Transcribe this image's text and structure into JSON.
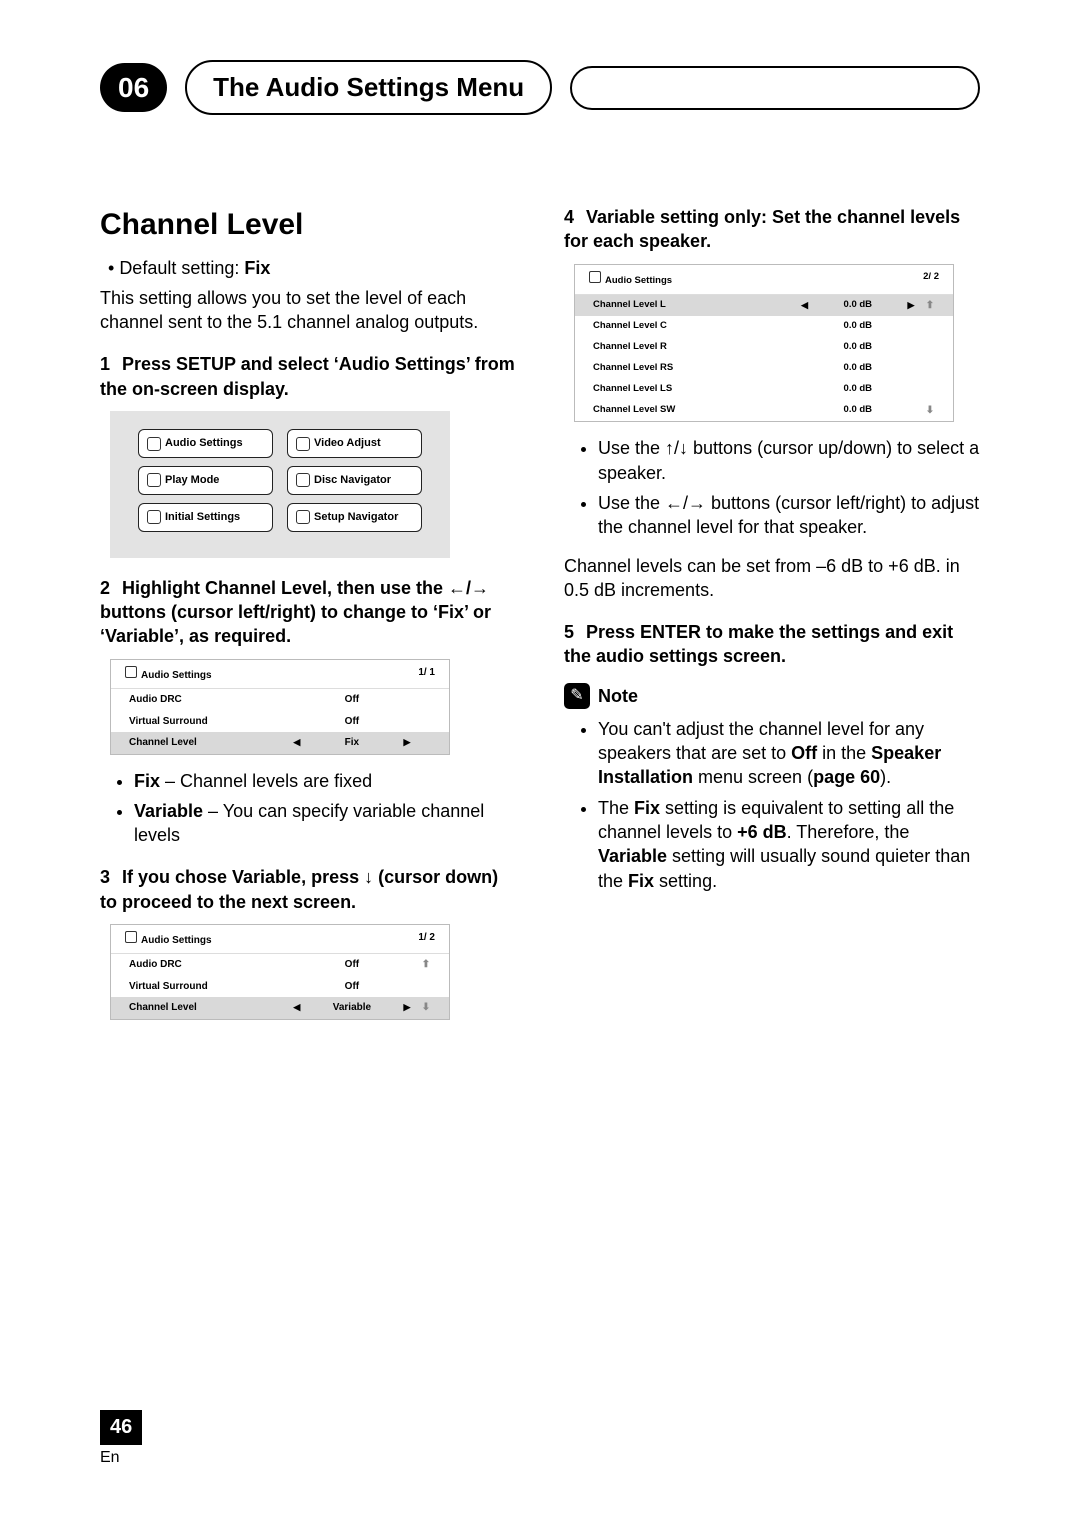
{
  "header": {
    "chapter": "06",
    "title": "The Audio Settings Menu"
  },
  "h1": "Channel Level",
  "default_label": "Default setting:",
  "default_value": "Fix",
  "intro": "This setting allows you to set the level of each channel sent to the 5.1 channel analog outputs.",
  "steps": {
    "s1": "Press SETUP and select ‘Audio Settings’ from the on-screen display.",
    "s2": "Highlight Channel Level, then use the ←/→ buttons (cursor left/right) to change to ‘Fix’ or ‘Variable’, as required.",
    "s3": "If you chose Variable, press ↓ (cursor down) to proceed to the next screen.",
    "s4": "Variable setting only: Set the channel levels for each speaker.",
    "s5": "Press ENTER to make the settings and exit the audio settings screen."
  },
  "menu1": {
    "items": [
      "Audio Settings",
      "Video Adjust",
      "Play Mode",
      "Disc Navigator",
      "Initial Settings",
      "Setup Navigator"
    ]
  },
  "osd1": {
    "title": "Audio Settings",
    "page": "1/ 1",
    "rows": [
      {
        "label": "Audio DRC",
        "value": "Off",
        "sel": false,
        "arrows": false
      },
      {
        "label": "Virtual Surround",
        "value": "Off",
        "sel": false,
        "arrows": false
      },
      {
        "label": "Channel Level",
        "value": "Fix",
        "sel": true,
        "arrows": true
      }
    ]
  },
  "fixvar": {
    "fix_label": "Fix",
    "fix_text": " – Channel levels are fixed",
    "var_label": "Variable",
    "var_text": " – You can specify variable channel levels"
  },
  "osd2": {
    "title": "Audio Settings",
    "page": "1/ 2",
    "rows": [
      {
        "label": "Audio DRC",
        "value": "Off",
        "sel": false,
        "arrows": false
      },
      {
        "label": "Virtual Surround",
        "value": "Off",
        "sel": false,
        "arrows": false
      },
      {
        "label": "Channel Level",
        "value": "Variable",
        "sel": true,
        "arrows": true
      }
    ]
  },
  "osd3": {
    "title": "Audio Settings",
    "page": "2/ 2",
    "rows": [
      {
        "label": "Channel Level L",
        "value": "0.0 dB",
        "sel": true,
        "arrows": true
      },
      {
        "label": "Channel Level C",
        "value": "0.0 dB",
        "sel": false,
        "arrows": false
      },
      {
        "label": "Channel Level R",
        "value": "0.0 dB",
        "sel": false,
        "arrows": false
      },
      {
        "label": "Channel Level RS",
        "value": "0.0 dB",
        "sel": false,
        "arrows": false
      },
      {
        "label": "Channel Level LS",
        "value": "0.0 dB",
        "sel": false,
        "arrows": false
      },
      {
        "label": "Channel Level SW",
        "value": "0.0 dB",
        "sel": false,
        "arrows": false
      }
    ]
  },
  "right_bullets": {
    "b1": "Use the ↑/↓ buttons (cursor up/down) to select a speaker.",
    "b2": "Use the ←/→ buttons (cursor left/right) to adjust the channel level for that speaker."
  },
  "range_text": "Channel levels can be set from –6 dB to +6 dB. in 0.5 dB increments.",
  "note_label": "Note",
  "notes": {
    "n1a": "You can't adjust the channel level for any speakers that are set to ",
    "n1b": "Off",
    "n1c": " in the ",
    "n1d": "Speaker Installation",
    "n1e": " menu screen (",
    "n1f": "page 60",
    "n1g": ").",
    "n2a": "The ",
    "n2b": "Fix",
    "n2c": " setting is equivalent to setting all the channel levels to ",
    "n2d": "+6 dB",
    "n2e": ". Therefore, the ",
    "n2f": "Variable",
    "n2g": " setting will usually sound quieter than the ",
    "n2h": "Fix",
    "n2i": " setting."
  },
  "page_number": "46",
  "lang": "En"
}
